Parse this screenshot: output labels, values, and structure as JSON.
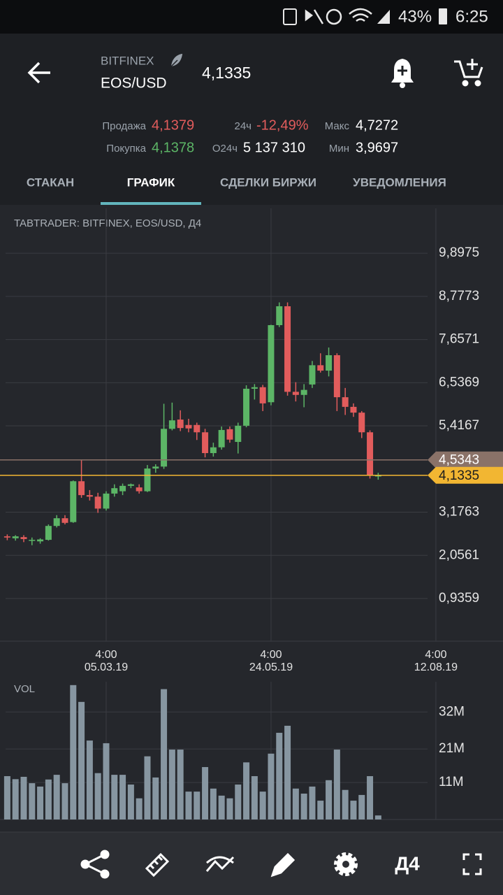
{
  "status_bar": {
    "battery": "43%",
    "time": "6:25"
  },
  "header": {
    "exchange": "BITFINEX",
    "pair": "EOS/USD",
    "price": "4,1335"
  },
  "stats": {
    "sell_label": "Продажа",
    "sell_value": "4,1379",
    "buy_label": "Покупка",
    "buy_value": "4,1378",
    "change_label": "24ч",
    "change_value": "-12,49%",
    "volume_label": "O24ч",
    "volume_value": "5 137 310",
    "high_label": "Макс",
    "high_value": "4,7272",
    "low_label": "Мин",
    "low_value": "3,9697"
  },
  "tabs": [
    "СТАКАН",
    "ГРАФИК",
    "СДЕЛКИ БИРЖИ",
    "УВЕДОМЛЕНИЯ"
  ],
  "active_tab": 1,
  "toolbar": {
    "timeframe": "Д4"
  },
  "chart_data": [
    {
      "type": "candlestick",
      "title": "TABTRADER: BITFINEX, EOS/USD, Д4",
      "up_color": "#5cb566",
      "down_color": "#e25c5c",
      "xlim": [
        -0.88,
        60.14
      ],
      "xticks": [
        {
          "value": 12,
          "label": "4:00",
          "date": "05.03.19"
        },
        {
          "value": 32,
          "label": "4:00",
          "date": "24.05.19"
        },
        {
          "value": 52,
          "label": "4:00",
          "date": "12.08.19"
        }
      ],
      "ylim": [
        -0.17,
        11.06
      ],
      "yticks": [
        {
          "value": 0.9359,
          "label": "0,9359"
        },
        {
          "value": 2.0561,
          "label": "2,0561"
        },
        {
          "value": 3.1763,
          "label": "3,1763"
        },
        {
          "value": 5.4167,
          "label": "5,4167"
        },
        {
          "value": 6.5369,
          "label": "6,5369"
        },
        {
          "value": 7.6571,
          "label": "7,6571"
        },
        {
          "value": 8.7773,
          "label": "8,7773"
        },
        {
          "value": 9.8975,
          "label": "9,8975"
        }
      ],
      "grid": true,
      "price_lines": [
        {
          "value": 4.5343,
          "label": "4,5343",
          "color": "#8a7268"
        },
        {
          "value": 4.1335,
          "label": "4,1335",
          "color": "#f2b632"
        }
      ],
      "open": [
        2.55,
        2.5,
        2.53,
        2.45,
        2.42,
        2.46,
        2.82,
        3.02,
        2.92,
        3.98,
        3.62,
        3.58,
        3.27,
        3.66,
        3.72,
        3.86,
        3.82,
        3.72,
        4.31,
        4.36,
        5.34,
        5.58,
        5.44,
        5.44,
        5.25,
        4.71,
        4.86,
        5.33,
        5.0,
        5.42,
        6.38,
        6.42,
        6.03,
        8.03,
        8.52,
        6.3,
        6.22,
        6.49,
        6.99,
        6.85,
        7.25,
        6.16,
        5.91,
        5.76,
        5.25,
        4.13
      ],
      "high": [
        2.6,
        2.58,
        2.58,
        2.52,
        2.5,
        2.86,
        3.1,
        3.1,
        4.0,
        4.53,
        3.75,
        3.68,
        3.72,
        3.9,
        3.92,
        3.92,
        3.9,
        4.4,
        4.42,
        5.99,
        6.02,
        5.82,
        5.6,
        5.5,
        5.34,
        4.98,
        5.4,
        5.4,
        5.5,
        6.47,
        6.5,
        6.48,
        8.04,
        8.62,
        8.62,
        6.55,
        6.5,
        7.1,
        7.3,
        7.45,
        7.3,
        6.4,
        6.0,
        5.8,
        5.3,
        4.2
      ],
      "low": [
        2.45,
        2.44,
        2.4,
        2.32,
        2.36,
        2.44,
        2.78,
        2.86,
        2.9,
        3.55,
        3.48,
        3.16,
        3.22,
        3.58,
        3.62,
        3.8,
        3.66,
        3.7,
        4.2,
        4.3,
        5.3,
        5.28,
        5.25,
        5.05,
        4.6,
        4.62,
        4.8,
        4.98,
        4.7,
        5.38,
        6.1,
        5.8,
        5.95,
        7.98,
        6.2,
        6.05,
        5.9,
        6.4,
        6.8,
        6.7,
        5.8,
        5.7,
        5.65,
        5.1,
        4.05,
        4.02
      ],
      "close": [
        2.52,
        2.55,
        2.48,
        2.46,
        2.47,
        2.82,
        3.02,
        2.9,
        3.98,
        3.62,
        3.58,
        3.27,
        3.66,
        3.8,
        3.86,
        3.9,
        3.72,
        4.31,
        4.36,
        5.34,
        5.56,
        5.36,
        5.35,
        5.25,
        4.71,
        4.86,
        5.31,
        5.06,
        5.42,
        6.38,
        6.42,
        6.0,
        8.03,
        8.52,
        6.3,
        6.22,
        6.35,
        6.99,
        6.85,
        7.25,
        6.16,
        5.91,
        5.76,
        5.25,
        4.13,
        4.13
      ]
    },
    {
      "type": "bar",
      "title": "VOL",
      "color": "#8796a1",
      "xlim": [
        -0.88,
        60.14
      ],
      "ylim": [
        0,
        41
      ],
      "yticks": [
        {
          "value": 11,
          "label": "11M"
        },
        {
          "value": 21,
          "label": "21M"
        },
        {
          "value": 32,
          "label": "32M"
        }
      ],
      "values": [
        12.9,
        12,
        12.7,
        10.8,
        9.8,
        11.9,
        13.3,
        10.8,
        40,
        35,
        23.5,
        13.8,
        22.7,
        13.3,
        13.3,
        10.4,
        6.3,
        18.8,
        12.5,
        38.8,
        20.8,
        20.8,
        8.3,
        8.3,
        15.6,
        9.2,
        7.1,
        6.3,
        10.4,
        17,
        12.9,
        8.3,
        19.6,
        25.8,
        27.9,
        9.2,
        7.7,
        9.8,
        5.6,
        11.7,
        20.8,
        8.8,
        5.6,
        7.3,
        12.9,
        1.2
      ]
    }
  ]
}
